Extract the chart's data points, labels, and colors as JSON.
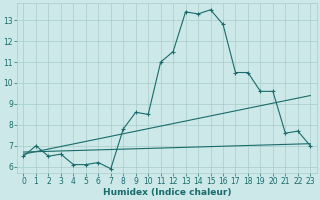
{
  "xlabel": "Humidex (Indice chaleur)",
  "bg_color": "#cce8e8",
  "grid_color": "#aacccc",
  "line_color": "#1a6b6b",
  "xlim": [
    -0.5,
    23.5
  ],
  "ylim": [
    5.7,
    13.8
  ],
  "yticks": [
    6,
    7,
    8,
    9,
    10,
    11,
    12,
    13
  ],
  "xticks": [
    0,
    1,
    2,
    3,
    4,
    5,
    6,
    7,
    8,
    9,
    10,
    11,
    12,
    13,
    14,
    15,
    16,
    17,
    18,
    19,
    20,
    21,
    22,
    23
  ],
  "line1_x": [
    0,
    1,
    2,
    3,
    4,
    5,
    6,
    7,
    8,
    9,
    10,
    11,
    12,
    13,
    14,
    15,
    16,
    17,
    18,
    19,
    20,
    21,
    22,
    23
  ],
  "line1_y": [
    6.5,
    7.0,
    6.5,
    6.6,
    6.1,
    6.1,
    6.2,
    5.9,
    7.8,
    8.6,
    8.5,
    11.0,
    11.5,
    13.4,
    13.3,
    13.5,
    12.8,
    10.5,
    10.5,
    9.6,
    9.6,
    7.6,
    7.7,
    7.0
  ],
  "line2_x": [
    0,
    23
  ],
  "line2_y": [
    6.6,
    9.4
  ],
  "line3_x": [
    0,
    23
  ],
  "line3_y": [
    6.7,
    7.1
  ],
  "tick_fontsize": 5.5,
  "xlabel_fontsize": 6.5
}
